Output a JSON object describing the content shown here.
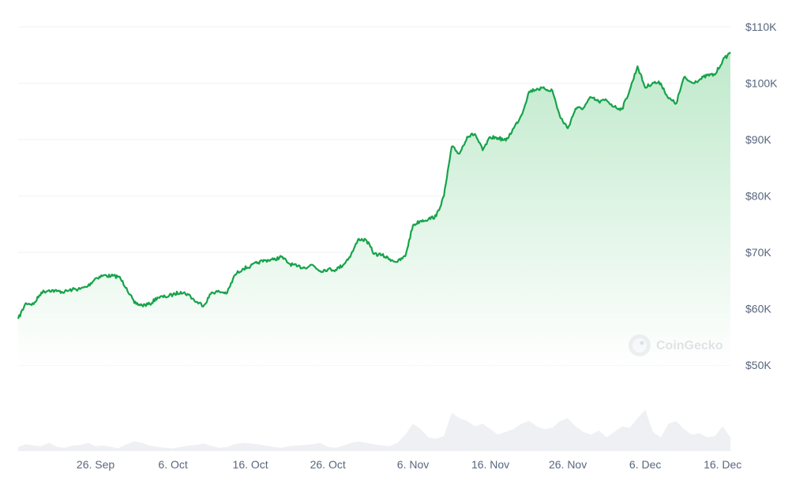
{
  "watermark": {
    "text": "CoinGecko",
    "icon": "coingecko-gecko-icon"
  },
  "colors": {
    "line": "#16a34a",
    "area_top": "#bfe9cb",
    "area_bottom": "#ffffff",
    "volume_fill": "#eef0f3",
    "grid": "#eff2f5",
    "tick": "#58667e"
  },
  "chart_data": {
    "type": "area",
    "title": "",
    "xlabel": "",
    "ylabel": "",
    "grid": true,
    "legend": "none",
    "y_axis_side": "right",
    "ylim": [
      49000,
      110000
    ],
    "yticks": [
      50000,
      60000,
      70000,
      80000,
      90000,
      100000,
      110000
    ],
    "ytick_labels": [
      "$50K",
      "$60K",
      "$70K",
      "$80K",
      "$90K",
      "$100K",
      "$110K"
    ],
    "xlim": [
      "2024-09-16",
      "2024-12-17"
    ],
    "xticks": [
      "2024-09-26",
      "2024-10-06",
      "2024-10-16",
      "2024-10-26",
      "2024-11-06",
      "2024-11-16",
      "2024-11-26",
      "2024-12-06",
      "2024-12-16"
    ],
    "xtick_labels": [
      "26. Sep",
      "6. Oct",
      "16. Oct",
      "26. Oct",
      "6. Nov",
      "16. Nov",
      "26. Nov",
      "6. Dec",
      "16. Dec"
    ],
    "series": [
      {
        "type": "line",
        "x": [
          "2024-09-16",
          "2024-09-17",
          "2024-09-18",
          "2024-09-19",
          "2024-09-20",
          "2024-09-21",
          "2024-09-22",
          "2024-09-23",
          "2024-09-24",
          "2024-09-25",
          "2024-09-26",
          "2024-09-27",
          "2024-09-28",
          "2024-09-29",
          "2024-09-30",
          "2024-10-01",
          "2024-10-02",
          "2024-10-03",
          "2024-10-04",
          "2024-10-05",
          "2024-10-06",
          "2024-10-07",
          "2024-10-08",
          "2024-10-09",
          "2024-10-10",
          "2024-10-11",
          "2024-10-12",
          "2024-10-13",
          "2024-10-14",
          "2024-10-15",
          "2024-10-16",
          "2024-10-17",
          "2024-10-18",
          "2024-10-19",
          "2024-10-20",
          "2024-10-21",
          "2024-10-22",
          "2024-10-23",
          "2024-10-24",
          "2024-10-25",
          "2024-10-26",
          "2024-10-27",
          "2024-10-28",
          "2024-10-29",
          "2024-10-30",
          "2024-10-31",
          "2024-11-01",
          "2024-11-02",
          "2024-11-03",
          "2024-11-04",
          "2024-11-05",
          "2024-11-06",
          "2024-11-07",
          "2024-11-08",
          "2024-11-09",
          "2024-11-10",
          "2024-11-11",
          "2024-11-12",
          "2024-11-13",
          "2024-11-14",
          "2024-11-15",
          "2024-11-16",
          "2024-11-17",
          "2024-11-18",
          "2024-11-19",
          "2024-11-20",
          "2024-11-21",
          "2024-11-22",
          "2024-11-23",
          "2024-11-24",
          "2024-11-25",
          "2024-11-26",
          "2024-11-27",
          "2024-11-28",
          "2024-11-29",
          "2024-11-30",
          "2024-12-01",
          "2024-12-02",
          "2024-12-03",
          "2024-12-04",
          "2024-12-05",
          "2024-12-06",
          "2024-12-07",
          "2024-12-08",
          "2024-12-09",
          "2024-12-10",
          "2024-12-11",
          "2024-12-12",
          "2024-12-13",
          "2024-12-14",
          "2024-12-15",
          "2024-12-16",
          "2024-12-17"
        ],
        "values": [
          58200,
          61000,
          60800,
          62900,
          63300,
          63100,
          63000,
          63400,
          63500,
          64000,
          65400,
          65900,
          65800,
          65700,
          63700,
          61000,
          60600,
          60800,
          62000,
          62100,
          62500,
          63000,
          62500,
          61200,
          60600,
          62900,
          63000,
          62800,
          66000,
          67100,
          67500,
          68200,
          68600,
          68700,
          69200,
          68000,
          67500,
          67300,
          67800,
          66700,
          67000,
          66900,
          67800,
          69600,
          72400,
          72100,
          69700,
          69500,
          68800,
          68300,
          69300,
          74800,
          75600,
          75900,
          76400,
          80000,
          88700,
          87500,
          90500,
          91000,
          88100,
          90400,
          90300,
          89800,
          92000,
          94300,
          98500,
          99000,
          99000,
          98700,
          94000,
          92000,
          95500,
          95600,
          97500,
          96700,
          97000,
          95800,
          95400,
          98800,
          103000,
          99200,
          100100,
          100000,
          97300,
          96400,
          101000,
          100100,
          100600,
          101400,
          101500,
          104000,
          105500
        ]
      }
    ],
    "volume": {
      "note": "relative trading volume band below price chart, unlabeled",
      "values": [
        0.15,
        0.25,
        0.2,
        0.18,
        0.3,
        0.15,
        0.12,
        0.2,
        0.22,
        0.3,
        0.18,
        0.2,
        0.15,
        0.1,
        0.25,
        0.35,
        0.3,
        0.2,
        0.15,
        0.12,
        0.1,
        0.15,
        0.2,
        0.22,
        0.28,
        0.18,
        0.12,
        0.15,
        0.25,
        0.3,
        0.28,
        0.25,
        0.2,
        0.15,
        0.12,
        0.18,
        0.2,
        0.22,
        0.25,
        0.3,
        0.15,
        0.12,
        0.2,
        0.3,
        0.35,
        0.3,
        0.25,
        0.2,
        0.18,
        0.3,
        0.6,
        1.0,
        0.8,
        0.5,
        0.45,
        0.55,
        1.4,
        1.2,
        1.1,
        0.9,
        1.0,
        0.8,
        0.6,
        0.7,
        0.8,
        1.0,
        1.1,
        0.9,
        0.8,
        0.85,
        1.1,
        1.2,
        0.9,
        0.7,
        0.6,
        0.75,
        0.5,
        0.7,
        0.9,
        0.85,
        1.2,
        1.5,
        0.7,
        0.5,
        1.0,
        1.1,
        0.8,
        0.6,
        0.65,
        0.5,
        0.55,
        0.9,
        0.5
      ]
    }
  }
}
